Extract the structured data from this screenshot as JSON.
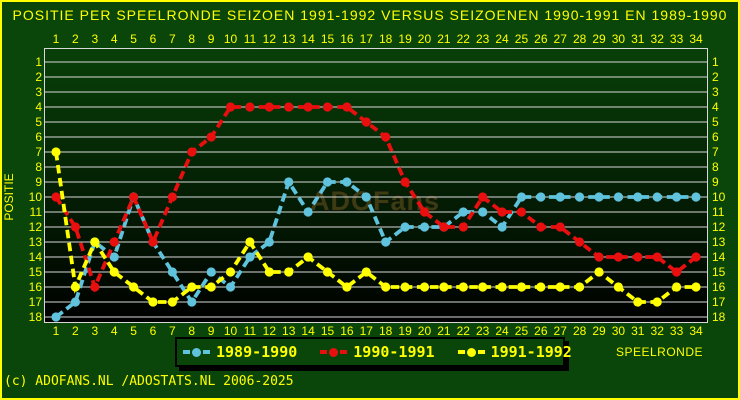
{
  "page": {
    "title": "POSITIE PER SPEELRONDE SEIZOEN 1991-1992 VERSUS SEIZOENEN 1990-1991 EN 1989-1990",
    "footer": "(c) ADOFANS.NL /ADOSTATS.NL 2006-2025",
    "colors": {
      "background": "#0a460a",
      "page_border": "#ffff00",
      "text": "#ffff00",
      "grid": "#d8d8d8",
      "frame": "#d8d8d8",
      "plot_bg_top": "#084008",
      "plot_bg_bottom": "#000000",
      "watermark_fill": "#3c3c12",
      "watermark_outline": "#15150a",
      "legend_border": "#000000"
    }
  },
  "chart_data": {
    "type": "line",
    "title": "POSITIE PER SPEELRONDE SEIZOEN 1991-1992 VERSUS SEIZOENEN 1990-1991 EN 1989-1990",
    "xlabel": "SPEELRONDE",
    "ylabel": "POSITIE",
    "watermark": "ADOFans",
    "x_ticks": [
      1,
      2,
      3,
      4,
      5,
      6,
      7,
      8,
      9,
      10,
      11,
      12,
      13,
      14,
      15,
      16,
      17,
      18,
      19,
      20,
      21,
      22,
      23,
      24,
      25,
      26,
      27,
      28,
      29,
      30,
      31,
      32,
      33,
      34
    ],
    "y_ticks": [
      1,
      2,
      3,
      4,
      5,
      6,
      7,
      8,
      9,
      10,
      11,
      12,
      13,
      14,
      15,
      16,
      17,
      18
    ],
    "xlim": [
      1,
      34
    ],
    "ylim": [
      1,
      18
    ],
    "y_inverted": true,
    "grid": "horizontal-only",
    "legend_position": "bottom-center",
    "series": [
      {
        "name": "1989-1990",
        "color": "#60c3dd",
        "values": [
          18,
          17,
          13,
          14,
          10,
          13,
          15,
          17,
          15,
          16,
          14,
          13,
          9,
          11,
          9,
          9,
          10,
          13,
          12,
          12,
          12,
          11,
          11,
          12,
          10,
          10,
          10,
          10,
          10,
          10,
          10,
          10,
          10,
          10
        ]
      },
      {
        "name": "1990-1991",
        "color": "#ea0f0f",
        "values": [
          10,
          12,
          16,
          13,
          10,
          13,
          10,
          7,
          6,
          4,
          4,
          4,
          4,
          4,
          4,
          4,
          5,
          6,
          9,
          11,
          12,
          12,
          10,
          11,
          11,
          12,
          12,
          13,
          14,
          14,
          14,
          14,
          15,
          14
        ]
      },
      {
        "name": "1991-1992",
        "color": "#ffff00",
        "values": [
          7,
          16,
          13,
          15,
          16,
          17,
          17,
          16,
          16,
          15,
          13,
          15,
          15,
          14,
          15,
          16,
          15,
          16,
          16,
          16,
          16,
          16,
          16,
          16,
          16,
          16,
          16,
          16,
          15,
          16,
          17,
          17,
          16,
          16
        ]
      }
    ]
  }
}
